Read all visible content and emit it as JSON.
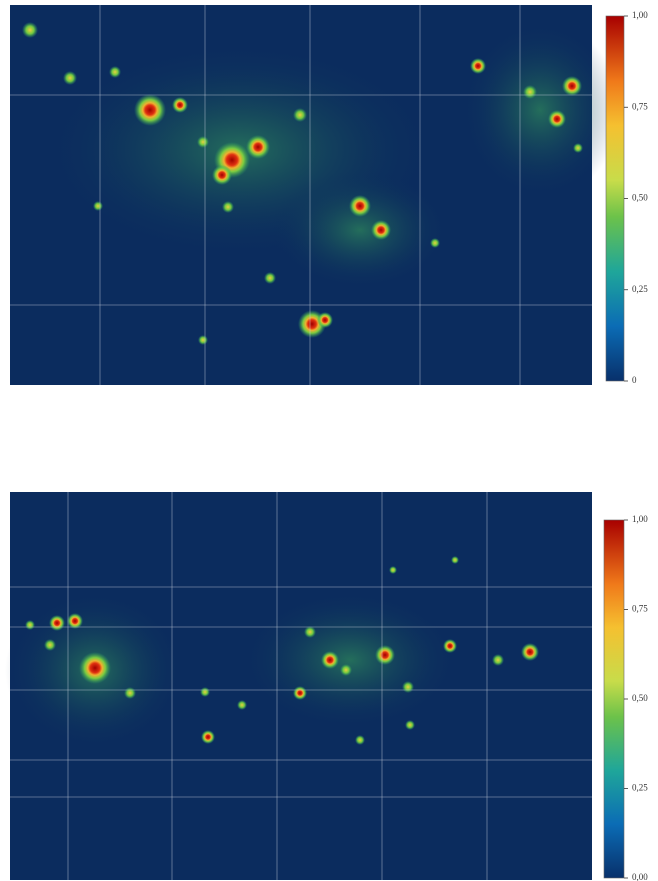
{
  "maps": [
    {
      "colorbar": {
        "range": [
          0,
          1
        ],
        "ticks": [
          {
            "value": 1,
            "label": "1,00"
          },
          {
            "value": 0.75,
            "label": "0,75"
          },
          {
            "value": 0.5,
            "label": "0,50"
          },
          {
            "value": 0.25,
            "label": "0,25"
          },
          0
        ]
      }
    },
    {
      "colorbar": {
        "range": [
          0,
          1
        ],
        "ticks": [
          {
            "value": 1,
            "label": "1,00"
          },
          {
            "value": 0.75,
            "label": "0,75"
          },
          {
            "value": 0.5,
            "label": "0,50"
          },
          {
            "value": 0.25,
            "label": "0,25"
          },
          {
            "value": 0,
            "label": "0,00"
          }
        ]
      }
    }
  ]
}
